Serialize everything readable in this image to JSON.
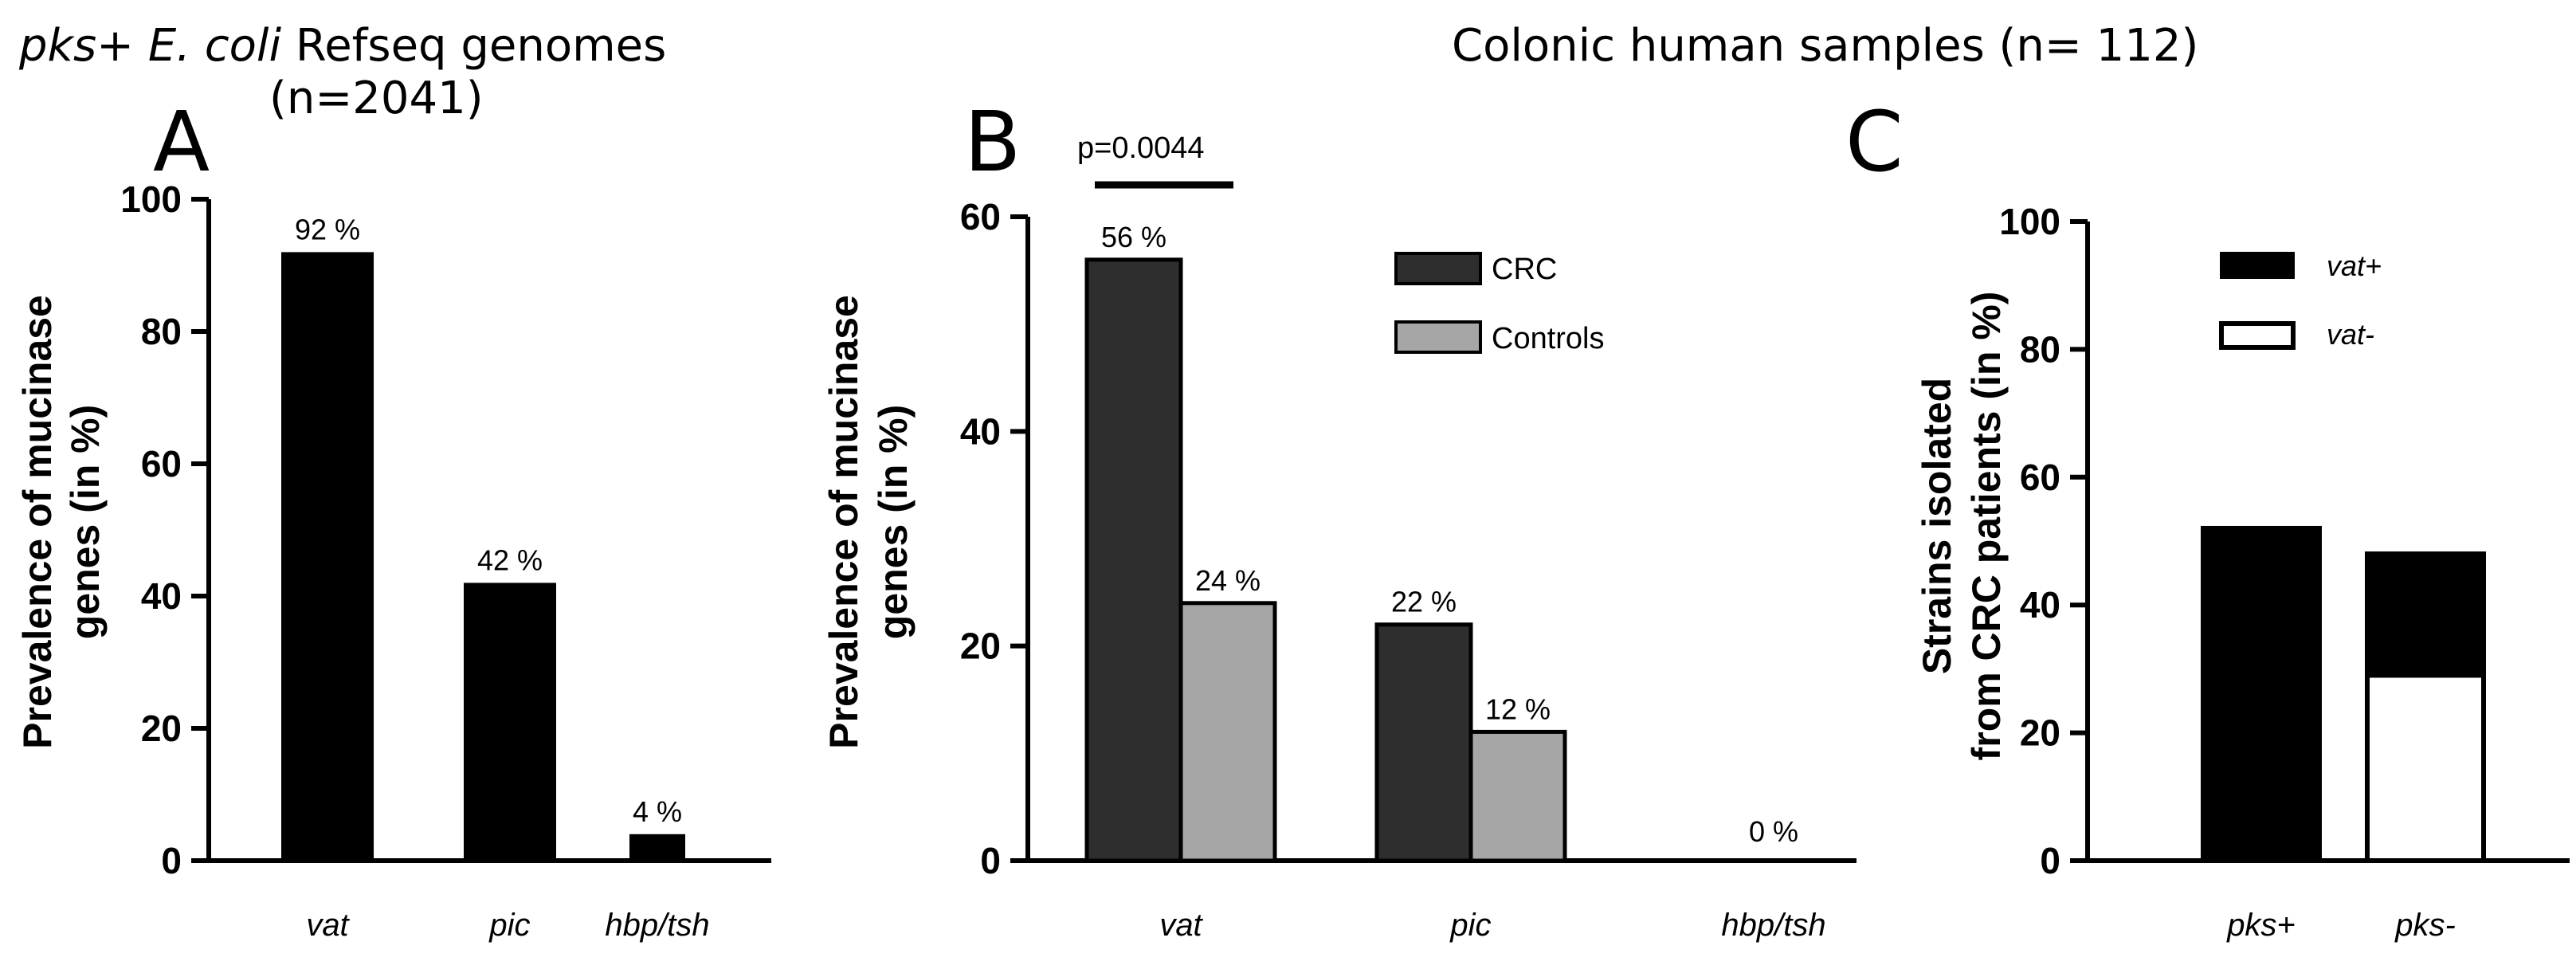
{
  "titles": {
    "left_italic": "pks+ E. coli",
    "left_rest": " Refseq genomes",
    "left_n": "(n=2041)",
    "right": "Colonic human samples (n= 112)"
  },
  "panel_labels": {
    "a": "A",
    "b": "B",
    "c": "C"
  },
  "colors": {
    "black": "#000000",
    "dark_gray": "#2e2e2e",
    "light_gray": "#a6a6a6",
    "white": "#ffffff"
  },
  "chart_data": [
    {
      "id": "A",
      "type": "bar",
      "title": "pks+ E. coli Refseq genomes (n=2041)",
      "ylabel_line1": "Prevalence of mucinase",
      "ylabel_line2": "genes (in %)",
      "ylim": [
        0,
        100
      ],
      "yticks": [
        "0",
        "20",
        "40",
        "60",
        "80",
        "100"
      ],
      "categories": [
        "vat",
        "pic",
        "hbp/tsh"
      ],
      "values": [
        92,
        42,
        4
      ],
      "data_labels": [
        "92 %",
        "42 %",
        "4 %"
      ]
    },
    {
      "id": "B",
      "type": "bar",
      "ylabel_line1": "Prevalence of mucinase",
      "ylabel_line2": "genes (in %)",
      "ylim": [
        0,
        60
      ],
      "yticks": [
        "0",
        "20",
        "40",
        "60"
      ],
      "categories": [
        "vat",
        "pic",
        "hbp/tsh"
      ],
      "series": [
        {
          "name": "CRC",
          "values": [
            56,
            22,
            0
          ],
          "data_labels": [
            "56 %",
            "22 %",
            ""
          ]
        },
        {
          "name": "Controls",
          "values": [
            24,
            12,
            0
          ],
          "data_labels": [
            "24 %",
            "12 %",
            ""
          ]
        }
      ],
      "group_label_hbp": "0 %",
      "annotation": "p=0.0044"
    },
    {
      "id": "C",
      "type": "bar",
      "stacked": true,
      "ylabel_line1": "Strains isolated",
      "ylabel_line2": "from CRC patients (in %)",
      "ylim": [
        0,
        100
      ],
      "yticks": [
        "0",
        "20",
        "40",
        "60",
        "80",
        "100"
      ],
      "categories": [
        "pks+",
        "pks-"
      ],
      "series": [
        {
          "name": "vat+",
          "values": [
            52,
            19
          ]
        },
        {
          "name": "vat-",
          "values": [
            0,
            29
          ]
        }
      ]
    }
  ]
}
